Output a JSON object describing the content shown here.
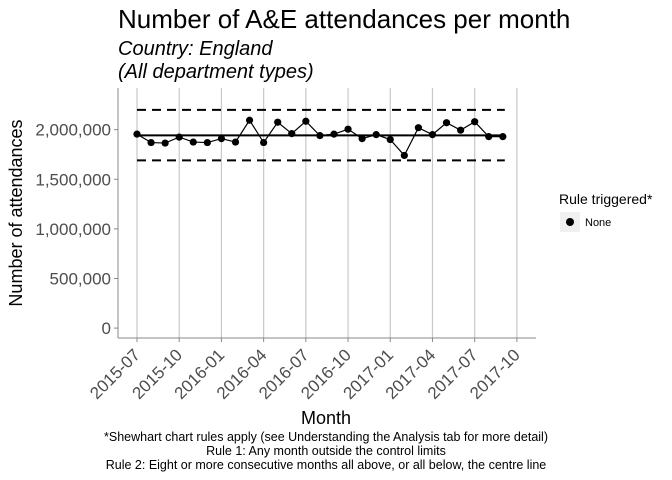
{
  "chart_data": {
    "type": "line",
    "title": "Number of A&E attendances per month",
    "subtitle_lines": [
      "Country: England",
      "(All department types)"
    ],
    "xlabel": "Month",
    "ylabel": "Number of attendances",
    "x_tick_labels": [
      "2015-07",
      "2015-10",
      "2016-01",
      "2016-04",
      "2016-07",
      "2016-10",
      "2017-01",
      "2017-04",
      "2017-07",
      "2017-10"
    ],
    "y_ticks": [
      0,
      500000,
      1000000,
      1500000,
      2000000
    ],
    "y_tick_labels": [
      "0",
      "500,000",
      "1,000,000",
      "1,500,000",
      "2,000,000"
    ],
    "ylim": [
      -100000,
      2420000
    ],
    "x": [
      "2015-07",
      "2015-08",
      "2015-09",
      "2015-10",
      "2015-11",
      "2015-12",
      "2016-01",
      "2016-02",
      "2016-03",
      "2016-04",
      "2016-05",
      "2016-06",
      "2016-07",
      "2016-08",
      "2016-09",
      "2016-10",
      "2016-11",
      "2016-12",
      "2017-01",
      "2017-02",
      "2017-03",
      "2017-04",
      "2017-05",
      "2017-06",
      "2017-07",
      "2017-08",
      "2017-09"
    ],
    "series": [
      {
        "values": [
          1955000,
          1870000,
          1865000,
          1925000,
          1875000,
          1870000,
          1910000,
          1875000,
          2095000,
          1870000,
          2075000,
          1960000,
          2085000,
          1940000,
          1955000,
          2005000,
          1910000,
          1950000,
          1900000,
          1740000,
          2020000,
          1950000,
          2070000,
          1995000,
          2080000,
          1930000,
          1930000
        ]
      }
    ],
    "centre_line": 1942000,
    "upper_control_limit": 2200000,
    "lower_control_limit": 1690000,
    "grid": "vertical",
    "legend": {
      "title": "Rule triggered*",
      "entries": [
        "None"
      ],
      "position": "right"
    },
    "footnotes": [
      "*Shewhart chart rules apply (see Understanding the Analysis tab for more detail)",
      "Rule 1: Any month outside the control limits",
      "Rule 2: Eight or more consecutive months all above, or all below, the centre line"
    ]
  }
}
